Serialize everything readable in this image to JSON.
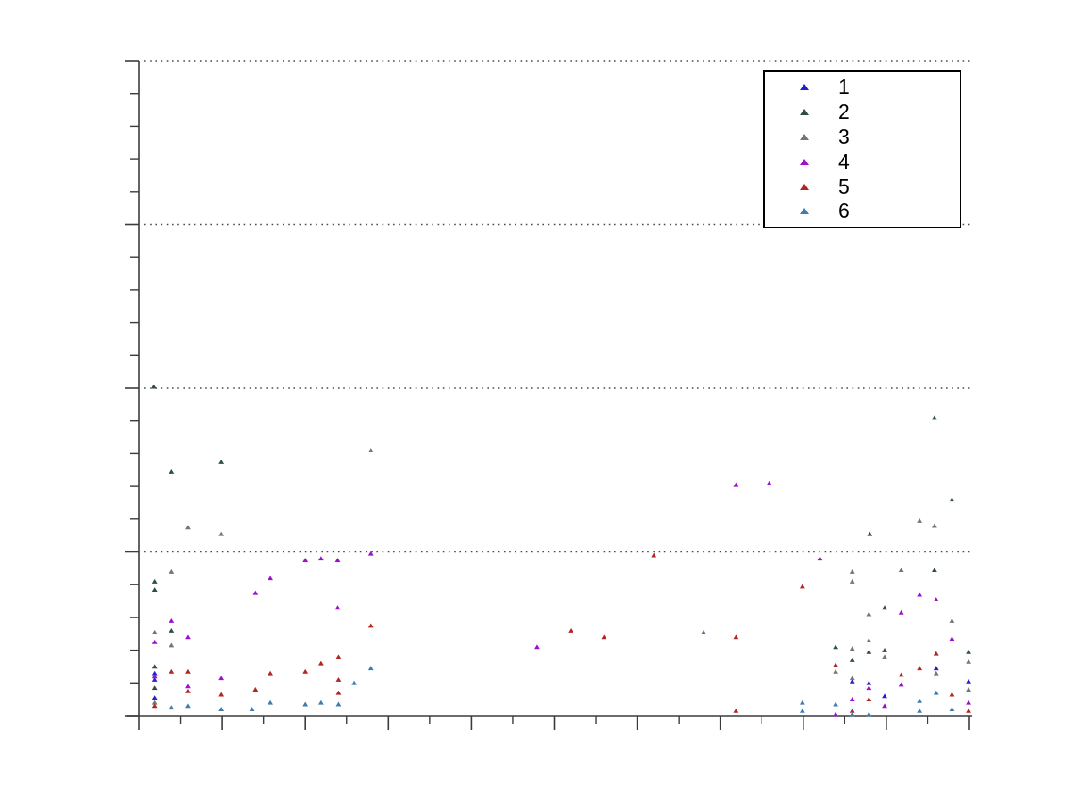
{
  "figure": {
    "background_color": "#ffffff",
    "axis_color": "#3c3c3c",
    "gridline_color": "#4a4a4a"
  },
  "legend": {
    "position": "top-right",
    "border_color": "#000000",
    "background_color": "#ffffff"
  },
  "chart_data": {
    "type": "scatter",
    "marker": "triangle-up",
    "title": "",
    "xlabel": "",
    "ylabel": "",
    "tick_labels_visible": false,
    "xlim": [
      0,
      10
    ],
    "ylim": [
      0,
      4
    ],
    "x_major_tick_step": 1,
    "x_minor_tick_step": 0.5,
    "y_major_tick_step": 1,
    "y_minor_tick_step": 0.2,
    "grid": "horizontal dotted lines at y major ticks",
    "gridline_y_values": [
      1,
      2,
      3,
      4
    ],
    "legend_position": "top-right",
    "series": [
      {
        "name": "1",
        "color": "#2020d0",
        "points": [
          [
            0.19,
            0.26
          ],
          [
            0.19,
            0.22
          ],
          [
            0.19,
            0.11
          ],
          [
            8.59,
            0.21
          ],
          [
            8.79,
            0.2
          ],
          [
            8.98,
            0.12
          ],
          [
            9.6,
            0.29
          ],
          [
            9.99,
            0.21
          ]
        ]
      },
      {
        "name": "2",
        "color": "#2d4f42",
        "points": [
          [
            0.18,
            2.01
          ],
          [
            0.39,
            1.49
          ],
          [
            0.99,
            1.55
          ],
          [
            0.19,
            0.82
          ],
          [
            0.19,
            0.77
          ],
          [
            0.39,
            0.52
          ],
          [
            0.19,
            0.3
          ],
          [
            0.19,
            0.17
          ],
          [
            8.8,
            1.11
          ],
          [
            8.98,
            0.66
          ],
          [
            8.39,
            0.42
          ],
          [
            8.79,
            0.39
          ],
          [
            8.98,
            0.4
          ],
          [
            8.59,
            0.34
          ],
          [
            9.58,
            1.82
          ],
          [
            9.79,
            1.32
          ],
          [
            9.58,
            0.89
          ],
          [
            9.99,
            0.39
          ]
        ]
      },
      {
        "name": "3",
        "color": "#757575",
        "points": [
          [
            0.59,
            1.15
          ],
          [
            0.99,
            1.11
          ],
          [
            2.79,
            1.62
          ],
          [
            0.39,
            0.88
          ],
          [
            0.19,
            0.51
          ],
          [
            0.39,
            0.43
          ],
          [
            0.19,
            0.08
          ],
          [
            8.59,
            0.88
          ],
          [
            8.59,
            0.82
          ],
          [
            8.79,
            0.62
          ],
          [
            8.79,
            0.46
          ],
          [
            8.59,
            0.41
          ],
          [
            8.98,
            0.36
          ],
          [
            8.39,
            0.27
          ],
          [
            8.59,
            0.23
          ],
          [
            9.4,
            1.19
          ],
          [
            9.58,
            1.16
          ],
          [
            9.18,
            0.89
          ],
          [
            9.79,
            0.58
          ],
          [
            9.99,
            0.33
          ],
          [
            9.6,
            0.26
          ],
          [
            9.99,
            0.16
          ]
        ]
      },
      {
        "name": "4",
        "color": "#9d0fd0",
        "points": [
          [
            2.79,
            0.99
          ],
          [
            2.0,
            0.95
          ],
          [
            2.19,
            0.96
          ],
          [
            2.39,
            0.95
          ],
          [
            1.58,
            0.84
          ],
          [
            1.4,
            0.75
          ],
          [
            2.39,
            0.66
          ],
          [
            0.39,
            0.58
          ],
          [
            0.59,
            0.48
          ],
          [
            0.19,
            0.45
          ],
          [
            0.19,
            0.24
          ],
          [
            0.59,
            0.18
          ],
          [
            0.99,
            0.23
          ],
          [
            4.79,
            0.42
          ],
          [
            7.19,
            1.41
          ],
          [
            7.59,
            1.42
          ],
          [
            8.2,
            0.96
          ],
          [
            8.39,
            0.01
          ],
          [
            8.59,
            0.1
          ],
          [
            8.79,
            0.17
          ],
          [
            8.98,
            0.06
          ],
          [
            9.4,
            0.74
          ],
          [
            9.6,
            0.71
          ],
          [
            9.18,
            0.63
          ],
          [
            9.79,
            0.47
          ],
          [
            9.18,
            0.19
          ],
          [
            9.99,
            0.08
          ]
        ]
      },
      {
        "name": "5",
        "color": "#b22522",
        "points": [
          [
            0.39,
            0.27
          ],
          [
            0.59,
            0.27
          ],
          [
            0.59,
            0.15
          ],
          [
            0.99,
            0.13
          ],
          [
            0.19,
            0.06
          ],
          [
            1.58,
            0.26
          ],
          [
            1.4,
            0.16
          ],
          [
            2.0,
            0.27
          ],
          [
            2.19,
            0.32
          ],
          [
            2.4,
            0.36
          ],
          [
            2.4,
            0.22
          ],
          [
            2.4,
            0.14
          ],
          [
            2.79,
            0.55
          ],
          [
            5.2,
            0.52
          ],
          [
            5.6,
            0.48
          ],
          [
            6.2,
            0.98
          ],
          [
            7.19,
            0.48
          ],
          [
            7.19,
            0.03
          ],
          [
            7.99,
            0.79
          ],
          [
            8.39,
            0.31
          ],
          [
            8.79,
            0.1
          ],
          [
            8.59,
            0.03
          ],
          [
            9.18,
            0.25
          ],
          [
            9.4,
            0.29
          ],
          [
            9.6,
            0.38
          ],
          [
            9.79,
            0.13
          ],
          [
            9.99,
            0.03
          ]
        ]
      },
      {
        "name": "6",
        "color": "#3f7cae",
        "points": [
          [
            0.39,
            0.05
          ],
          [
            0.59,
            0.06
          ],
          [
            0.99,
            0.04
          ],
          [
            1.36,
            0.04
          ],
          [
            1.58,
            0.08
          ],
          [
            2.0,
            0.07
          ],
          [
            2.19,
            0.08
          ],
          [
            2.4,
            0.07
          ],
          [
            2.59,
            0.2
          ],
          [
            2.79,
            0.29
          ],
          [
            6.8,
            0.51
          ],
          [
            7.99,
            0.08
          ],
          [
            7.99,
            0.03
          ],
          [
            8.39,
            0.07
          ],
          [
            8.59,
            0.01
          ],
          [
            8.79,
            0.01
          ],
          [
            9.4,
            0.09
          ],
          [
            9.4,
            0.03
          ],
          [
            9.6,
            0.14
          ],
          [
            9.79,
            0.04
          ]
        ]
      }
    ]
  }
}
